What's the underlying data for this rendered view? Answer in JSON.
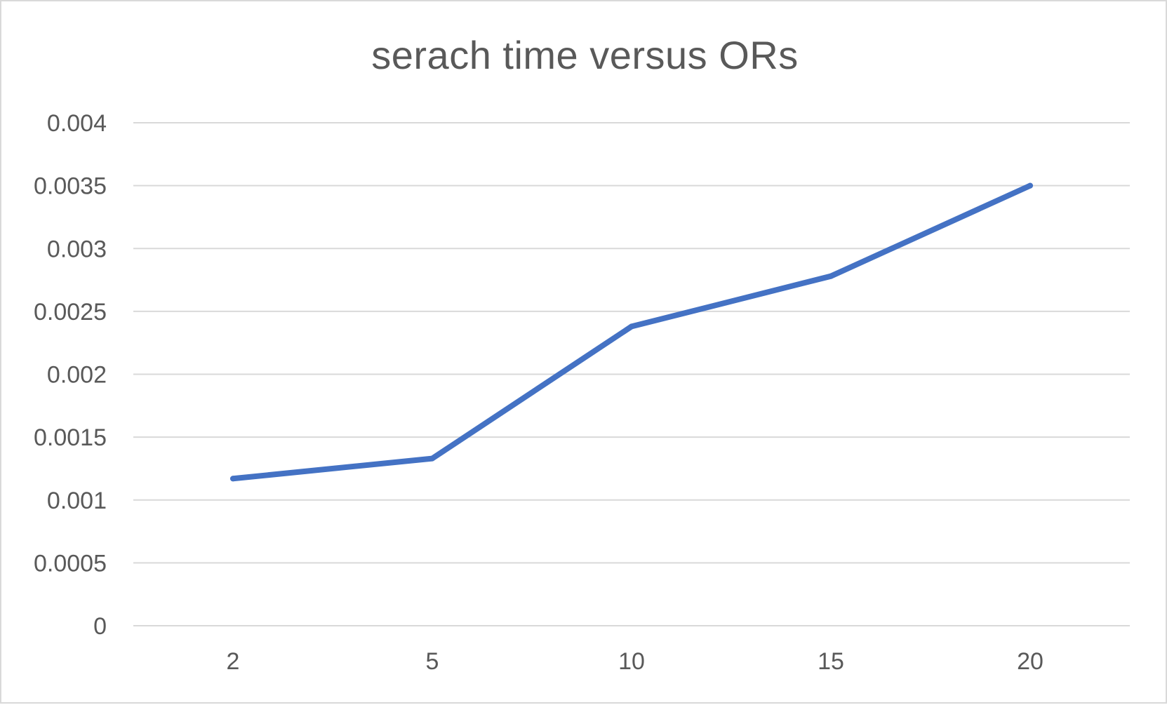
{
  "chart_data": {
    "type": "line",
    "title": "serach time versus ORs",
    "xlabel": "",
    "ylabel": "",
    "categories": [
      "2",
      "5",
      "10",
      "15",
      "20"
    ],
    "series": [
      {
        "values": [
          0.00117,
          0.00133,
          0.00238,
          0.00278,
          0.0035
        ],
        "color": "#4472c4"
      }
    ],
    "ylim": [
      0,
      0.004
    ],
    "yticks": [
      0,
      0.0005,
      0.001,
      0.0015,
      0.002,
      0.0025,
      0.003,
      0.0035,
      0.004
    ],
    "ytick_labels": [
      "0",
      "0.0005",
      "0.001",
      "0.0015",
      "0.002",
      "0.0025",
      "0.003",
      "0.0035",
      "0.004"
    ],
    "grid": true,
    "legend": "none",
    "gridline_color": "#d9d9d9"
  }
}
